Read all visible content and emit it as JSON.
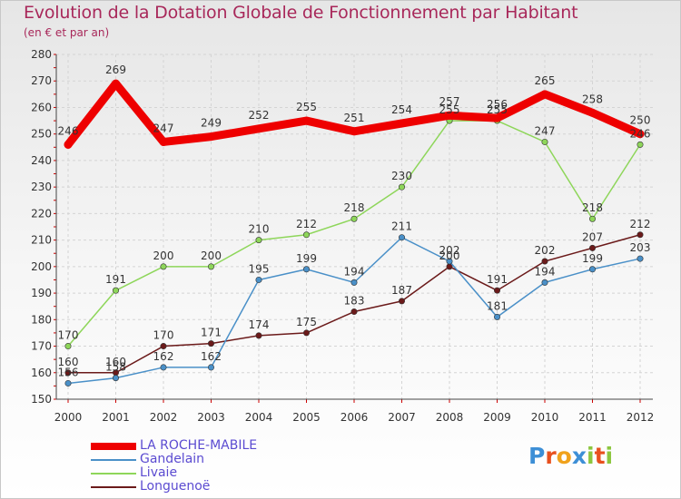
{
  "title": "Evolution de la Dotation Globale de Fonctionnement par Habitant",
  "subtitle": "(en € et par an)",
  "brand": {
    "text": "Proxiti",
    "letter_colors": [
      "#3d8fd6",
      "#e8501e",
      "#f0a21c",
      "#3d8fd6",
      "#8cc63e",
      "#e8501e",
      "#8cc63e"
    ]
  },
  "chart_data": {
    "type": "line",
    "x": [
      "2000",
      "2001",
      "2002",
      "2003",
      "2004",
      "2005",
      "2006",
      "2007",
      "2008",
      "2009",
      "2010",
      "2011",
      "2012"
    ],
    "ylim": [
      150,
      280
    ],
    "yticks": [
      150,
      160,
      170,
      180,
      190,
      200,
      210,
      220,
      230,
      240,
      250,
      260,
      270,
      280
    ],
    "grid": true,
    "legend_position": "bottom-left",
    "series": [
      {
        "name": "LA ROCHE-MABILE",
        "values": [
          246,
          269,
          247,
          249,
          252,
          255,
          251,
          254,
          257,
          256,
          265,
          258,
          250
        ],
        "color": "#ee0000",
        "labels": [
          "246",
          "269",
          "247",
          "249",
          "252",
          "255",
          "251",
          "254",
          "257",
          "256",
          "265",
          "258",
          "250"
        ]
      },
      {
        "name": "Gandelain",
        "values": [
          156,
          158,
          162,
          162,
          195,
          199,
          194,
          211,
          202,
          181,
          194,
          199,
          203
        ],
        "color": "#4a90c8",
        "labels": [
          "156",
          "158",
          "162",
          "162",
          "195",
          "199",
          "194",
          "211",
          "202",
          "181",
          "194",
          "199",
          "203"
        ]
      },
      {
        "name": "Livaie",
        "values": [
          170,
          191,
          200,
          200,
          210,
          212,
          218,
          230,
          255,
          255,
          247,
          218,
          246
        ],
        "color": "#8ed65a",
        "labels": [
          "170",
          "191",
          "200",
          "200",
          "210",
          "212",
          "218",
          "230",
          "255",
          "255",
          "247",
          "218",
          "246"
        ]
      },
      {
        "name": "Longuenoë",
        "values": [
          160,
          160,
          170,
          171,
          174,
          175,
          183,
          187,
          200,
          191,
          202,
          207,
          212
        ],
        "color": "#6b1a1a",
        "labels": [
          "160",
          "160",
          "170",
          "171",
          "174",
          "175",
          "183",
          "187",
          "200",
          "191",
          "202",
          "207",
          "212"
        ]
      }
    ]
  }
}
